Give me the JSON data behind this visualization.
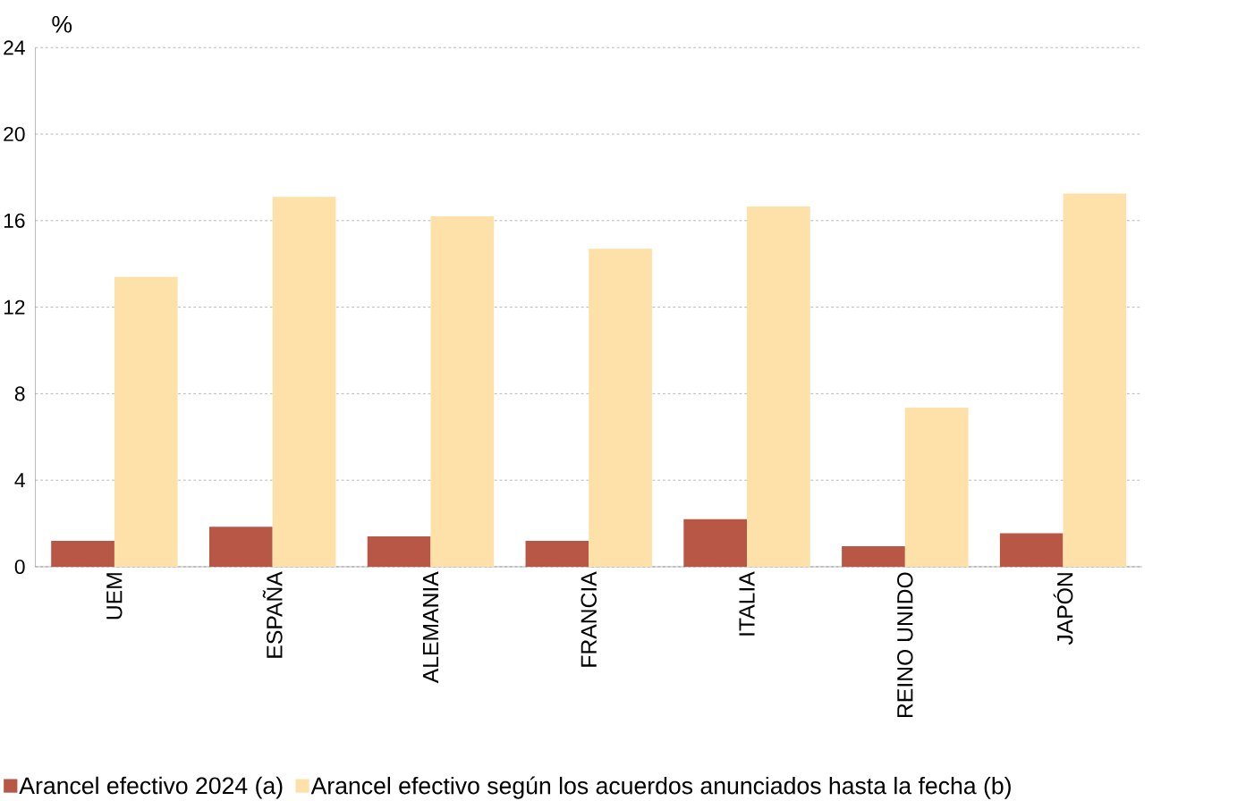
{
  "chart_data": {
    "type": "bar",
    "ylabel": "%",
    "categories": [
      "UEM",
      "ESPAÑA",
      "ALEMANIA",
      "FRANCIA",
      "ITALIA",
      "REINO UNIDO",
      "JAPÓN"
    ],
    "series": [
      {
        "name": "Arancel efectivo 2024 (a)",
        "color": "#b85746",
        "values": [
          1.2,
          1.85,
          1.4,
          1.2,
          2.2,
          0.95,
          1.55
        ]
      },
      {
        "name": "Arancel efectivo según los acuerdos anunciados hasta la fecha (b)",
        "color": "#fde1a8",
        "values": [
          13.4,
          17.1,
          16.2,
          14.7,
          16.65,
          7.35,
          17.25
        ]
      }
    ],
    "ylim": [
      0,
      24
    ],
    "yticks": [
      0,
      4,
      8,
      12,
      16,
      20,
      24
    ],
    "grid": "y",
    "legend": "bottom left"
  }
}
